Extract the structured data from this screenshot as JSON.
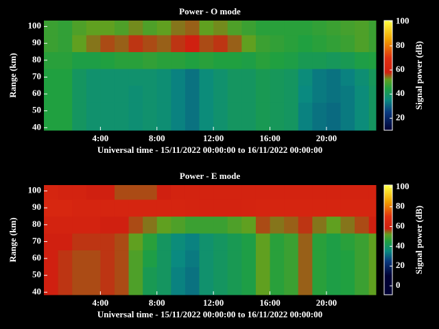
{
  "chart_data": [
    {
      "type": "heatmap",
      "title": "Power - O mode",
      "xlabel": "Universal time - 15/11/2022 00:00:00 to 16/11/2022 00:00:00",
      "ylabel": "Range (km)",
      "colorbar_label": "Signal power (dB)",
      "x_bins": [
        0,
        1,
        2,
        3,
        4,
        5,
        6,
        7,
        8,
        9,
        10,
        11,
        12,
        13,
        14,
        15,
        16,
        17,
        18,
        19,
        20,
        21,
        22,
        23,
        23.5
      ],
      "y_bins": [
        38.5,
        45,
        55,
        65,
        75,
        85,
        95,
        103.5
      ],
      "values": [
        [
          45,
          45,
          40,
          38,
          38,
          38,
          37,
          38,
          37,
          34,
          32,
          36,
          38,
          40,
          40,
          42,
          41,
          40,
          34,
          32,
          31,
          33,
          36,
          40
        ],
        [
          45,
          45,
          40,
          38,
          38,
          38,
          37,
          38,
          37,
          34,
          32,
          36,
          38,
          40,
          40,
          42,
          41,
          40,
          34,
          32,
          31,
          33,
          36,
          40
        ],
        [
          45,
          45,
          40,
          38,
          38,
          38,
          37,
          38,
          37,
          34,
          32,
          36,
          38,
          40,
          40,
          42,
          41,
          40,
          35,
          33,
          32,
          33,
          36,
          40
        ],
        [
          45,
          45,
          40,
          38,
          38,
          38,
          38,
          38,
          37,
          34,
          32,
          36,
          38,
          40,
          40,
          42,
          41,
          40,
          36,
          33,
          32,
          34,
          37,
          41
        ],
        [
          46,
          46,
          44,
          44,
          45,
          46,
          46,
          47,
          46,
          46,
          45,
          46,
          45,
          45,
          44,
          46,
          45,
          44,
          42,
          42,
          41,
          42,
          44,
          45
        ],
        [
          48,
          47,
          52,
          54,
          56,
          55,
          57,
          56,
          55,
          57,
          58,
          56,
          57,
          55,
          52,
          48,
          47,
          46,
          45,
          46,
          47,
          48,
          50,
          48
        ],
        [
          48,
          47,
          50,
          52,
          52,
          50,
          53,
          50,
          52,
          54,
          55,
          52,
          53,
          50,
          48,
          46,
          46,
          46,
          46,
          47,
          48,
          49,
          50,
          48
        ]
      ],
      "xlim": [
        0,
        23.5
      ],
      "ylim": [
        38.5,
        103.5
      ],
      "xticks": [
        {
          "value": 4,
          "label": "4:00"
        },
        {
          "value": 8,
          "label": "8:00"
        },
        {
          "value": 12,
          "label": "12:00"
        },
        {
          "value": 16,
          "label": "16:00"
        },
        {
          "value": 20,
          "label": "20:00"
        }
      ],
      "yticks": [
        40,
        50,
        60,
        70,
        80,
        90,
        100
      ],
      "clim": [
        10,
        101
      ],
      "cticks": [
        20,
        40,
        60,
        80,
        100
      ],
      "colormap": [
        {
          "value": 10,
          "color": "#000033"
        },
        {
          "value": 25,
          "color": "#0a3a80"
        },
        {
          "value": 35,
          "color": "#0a8a80"
        },
        {
          "value": 45,
          "color": "#20a040"
        },
        {
          "value": 52,
          "color": "#60a020"
        },
        {
          "value": 58,
          "color": "#d02010"
        },
        {
          "value": 70,
          "color": "#e03010"
        },
        {
          "value": 85,
          "color": "#f0a000"
        },
        {
          "value": 101,
          "color": "#ffff40"
        }
      ]
    },
    {
      "type": "heatmap",
      "title": "Power - E mode",
      "xlabel": "Universal time - 15/11/2022 00:00:00 to 16/11/2022 00:00:00",
      "ylabel": "Range (km)",
      "colorbar_label": "Signal power (dB)",
      "x_bins": [
        0,
        1,
        2,
        3,
        4,
        5,
        6,
        7,
        8,
        9,
        10,
        11,
        12,
        13,
        14,
        15,
        16,
        17,
        18,
        19,
        20,
        21,
        22,
        23,
        23.5
      ],
      "y_bins": [
        38.5,
        45,
        55,
        65,
        75,
        85,
        95,
        103.5
      ],
      "values": [
        [
          58,
          57,
          56,
          56,
          57,
          56,
          50,
          42,
          40,
          34,
          32,
          38,
          40,
          42,
          44,
          52,
          46,
          48,
          55,
          46,
          44,
          45,
          48,
          52
        ],
        [
          58,
          57,
          56,
          56,
          57,
          56,
          50,
          42,
          40,
          34,
          32,
          38,
          40,
          42,
          44,
          52,
          46,
          48,
          55,
          46,
          44,
          45,
          48,
          52
        ],
        [
          58,
          57,
          56,
          56,
          57,
          56,
          50,
          44,
          40,
          35,
          33,
          38,
          40,
          42,
          44,
          52,
          46,
          48,
          55,
          46,
          44,
          45,
          48,
          52
        ],
        [
          58,
          58,
          57,
          57,
          57,
          56,
          52,
          46,
          40,
          36,
          34,
          38,
          40,
          42,
          44,
          52,
          46,
          48,
          55,
          46,
          44,
          46,
          48,
          52
        ],
        [
          60,
          60,
          60,
          60,
          58,
          58,
          56,
          54,
          52,
          50,
          48,
          48,
          48,
          50,
          52,
          56,
          54,
          55,
          57,
          54,
          52,
          54,
          56,
          58
        ],
        [
          63,
          63,
          62,
          62,
          62,
          62,
          62,
          62,
          62,
          62,
          61,
          60,
          60,
          60,
          61,
          62,
          62,
          62,
          62,
          62,
          62,
          62,
          62,
          62
        ],
        [
          62,
          60,
          60,
          58,
          58,
          56,
          56,
          56,
          58,
          60,
          60,
          60,
          60,
          60,
          60,
          60,
          60,
          60,
          60,
          60,
          60,
          60,
          60,
          60
        ]
      ],
      "xlim": [
        0,
        23.5
      ],
      "ylim": [
        38.5,
        103.5
      ],
      "xticks": [
        {
          "value": 4,
          "label": "4:00"
        },
        {
          "value": 8,
          "label": "8:00"
        },
        {
          "value": 12,
          "label": "12:00"
        },
        {
          "value": 16,
          "label": "16:00"
        },
        {
          "value": 20,
          "label": "20:00"
        }
      ],
      "yticks": [
        40,
        50,
        60,
        70,
        80,
        90,
        100
      ],
      "clim": [
        -9,
        102
      ],
      "cticks": [
        0,
        20,
        40,
        60,
        80,
        100
      ],
      "colormap": [
        {
          "value": 10,
          "color": "#000033"
        },
        {
          "value": 25,
          "color": "#0a3a80"
        },
        {
          "value": 35,
          "color": "#0a8a80"
        },
        {
          "value": 45,
          "color": "#20a040"
        },
        {
          "value": 52,
          "color": "#60a020"
        },
        {
          "value": 58,
          "color": "#d02010"
        },
        {
          "value": 70,
          "color": "#e03010"
        },
        {
          "value": 85,
          "color": "#f0a000"
        },
        {
          "value": 101,
          "color": "#ffff40"
        }
      ]
    }
  ]
}
